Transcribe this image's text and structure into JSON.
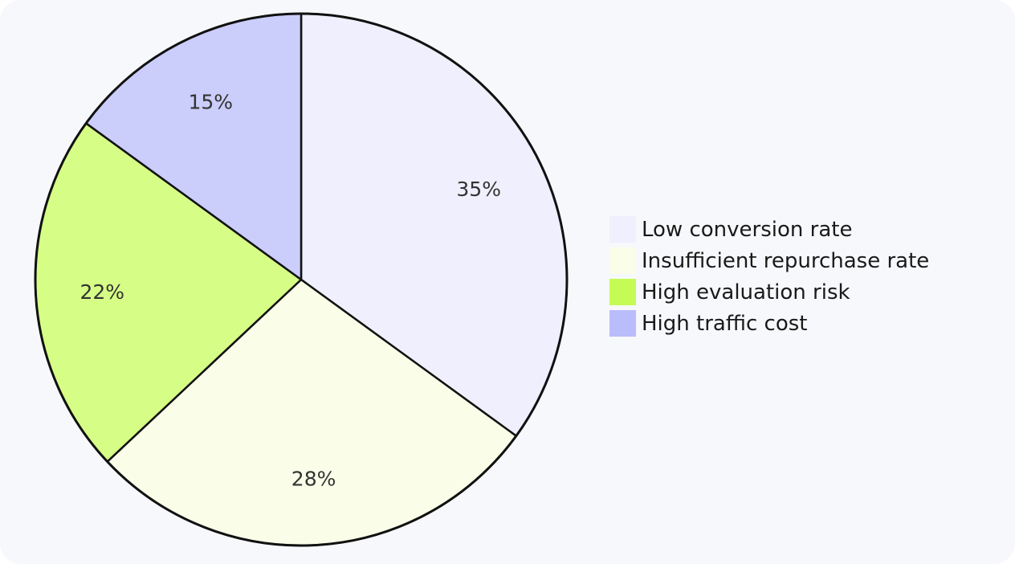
{
  "chart_data": {
    "type": "pie",
    "title": "",
    "categories": [
      "Low conversion rate",
      "Insufficient repurchase rate",
      "High evaluation risk",
      "High traffic cost"
    ],
    "values": [
      35,
      28,
      22,
      15
    ],
    "value_labels": [
      "35%",
      "28%",
      "22%",
      "15%"
    ],
    "colors": [
      "#efeffd",
      "#fafee8",
      "#d6fd86",
      "#cbcdfa"
    ],
    "legend_colors": [
      "#efeffd",
      "#fafee8",
      "#c5fb55",
      "#b9bdfb"
    ],
    "start_angle": "12 o'clock",
    "direction": "clockwise",
    "legend_position": "right"
  }
}
